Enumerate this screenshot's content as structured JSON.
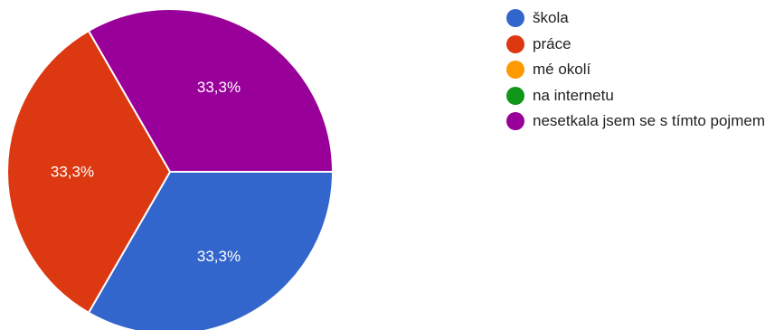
{
  "chart_data": {
    "type": "pie",
    "title": "",
    "slices": [
      {
        "label": "škola",
        "value": 33.3,
        "value_label": "33,3%",
        "color": "#3366cc"
      },
      {
        "label": "práce",
        "value": 33.3,
        "value_label": "33,3%",
        "color": "#dc3912"
      },
      {
        "label": "mé okolí",
        "value": 0,
        "value_label": "",
        "color": "#ff9900"
      },
      {
        "label": "na internetu",
        "value": 0,
        "value_label": "",
        "color": "#109618"
      },
      {
        "label": "nesetkala jsem se s tímto pojmem",
        "value": 33.3,
        "value_label": "33,3%",
        "color": "#990099"
      }
    ],
    "legend_position": "right"
  }
}
